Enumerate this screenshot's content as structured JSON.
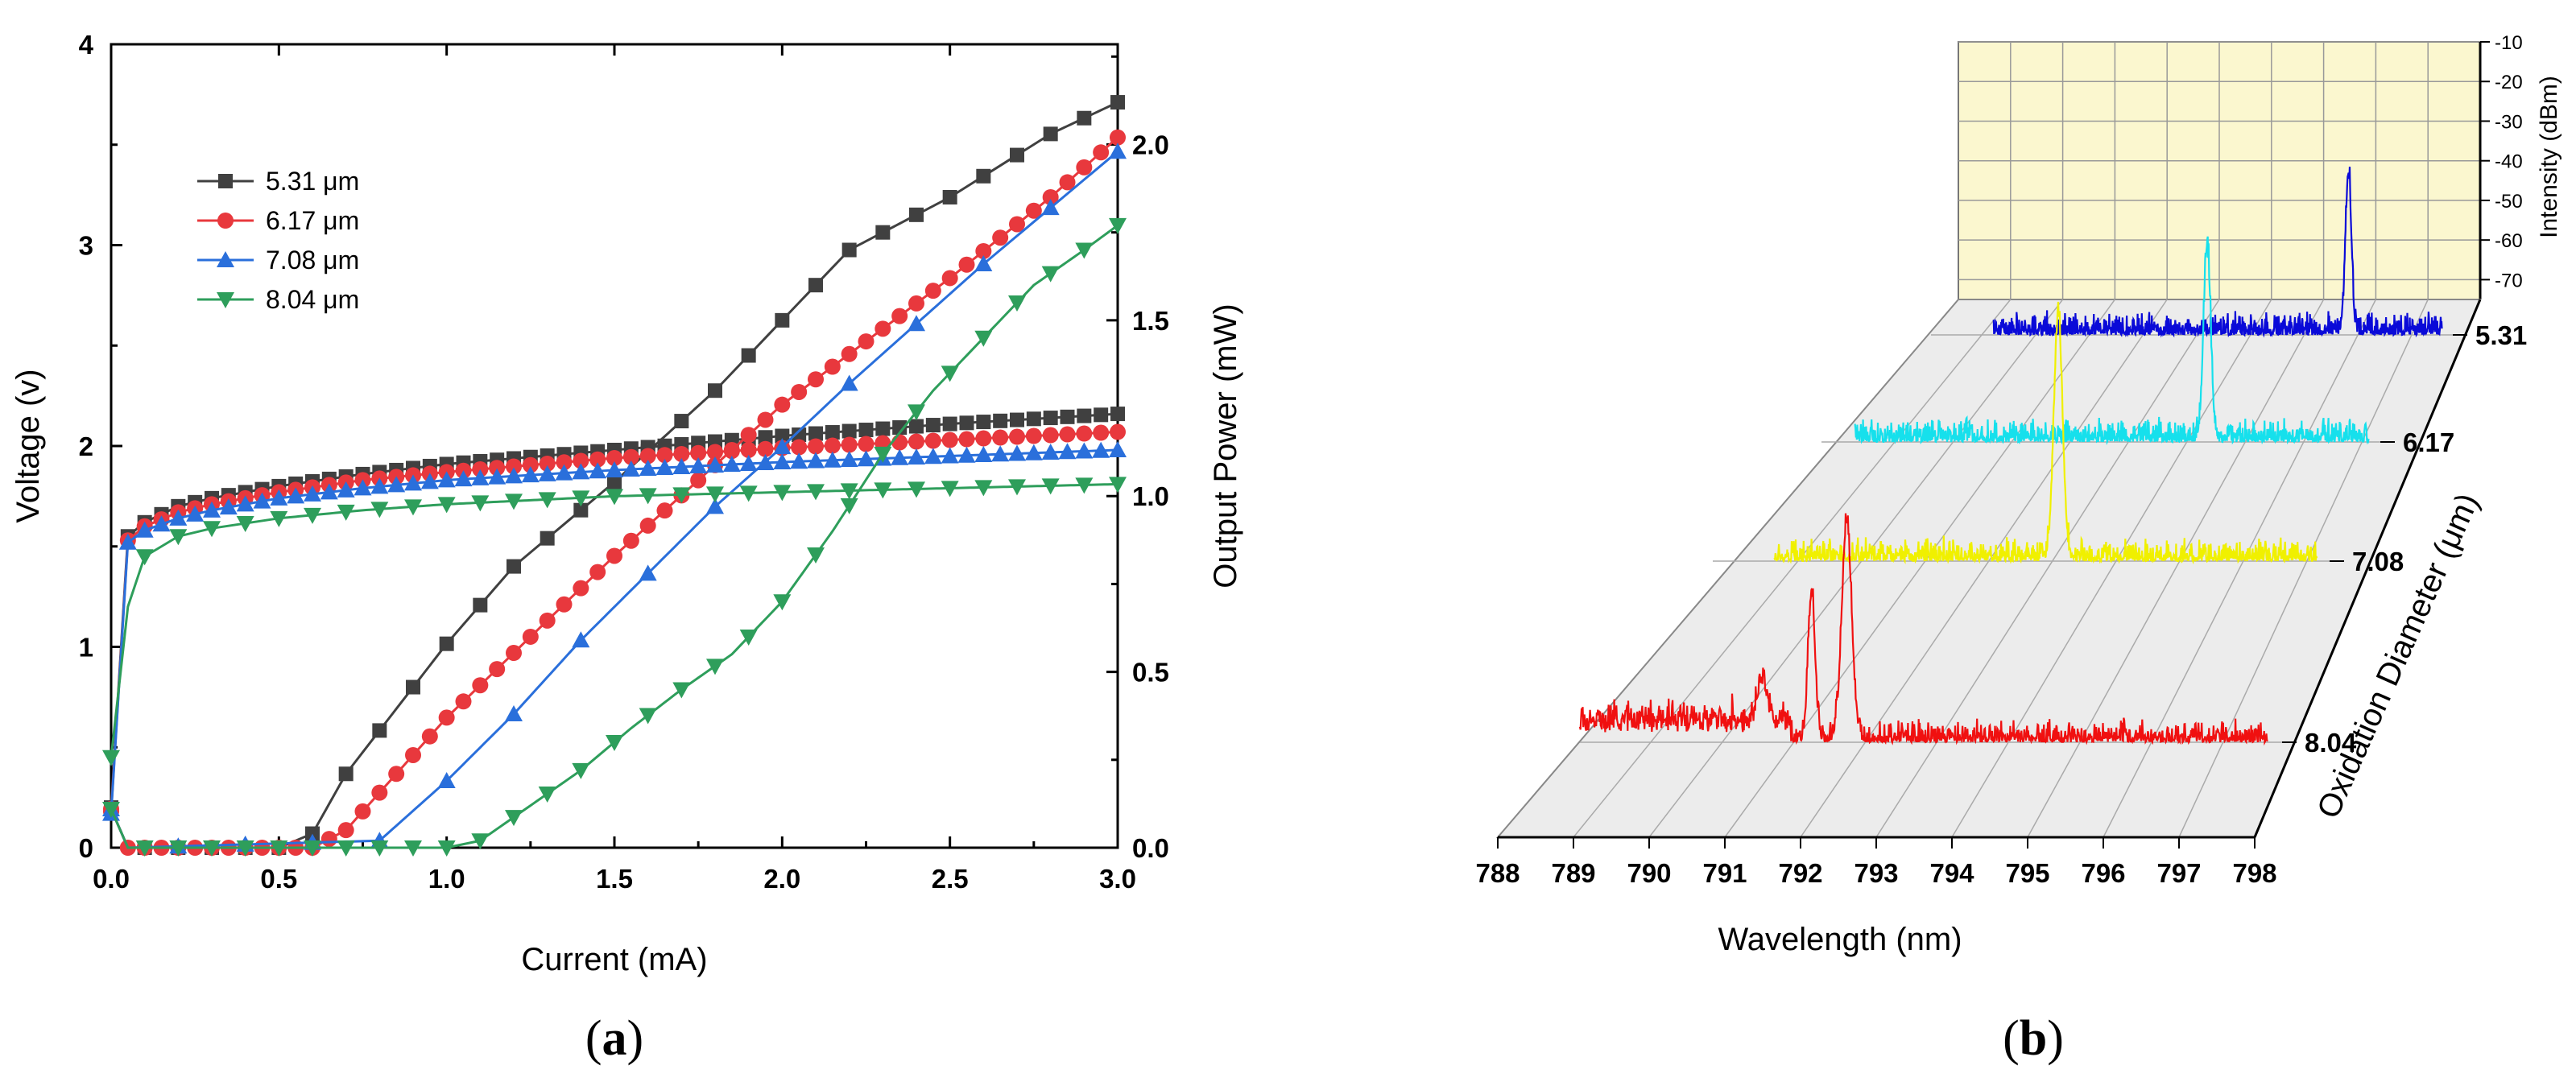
{
  "chart_data": [
    {
      "type": "line",
      "panel_label": "a",
      "xlabel": "Current (mA)",
      "ylabel": "Voltage (v)",
      "y2label": "Output Power (mW)",
      "xlim": [
        0,
        3
      ],
      "ylim": [
        0,
        4
      ],
      "y2lim": [
        0,
        2.285
      ],
      "x_ticks": [
        "0.0",
        "0.5",
        "1.0",
        "1.5",
        "2.0",
        "2.5",
        "3.0"
      ],
      "y_ticks": [
        "0",
        "1",
        "2",
        "3",
        "4"
      ],
      "y2_ticks": [
        "0.0",
        "0.5",
        "1.0",
        "1.5",
        "2.0"
      ],
      "legend_position": "top-left",
      "series": [
        {
          "name": "5.31 μm",
          "color": "#404040",
          "marker": "square",
          "voltage": {
            "x": [
              0,
              0.05,
              0.1,
              0.2,
              0.3,
              0.5,
              0.75,
              1.0,
              1.5,
              2.0,
              2.5,
              3.0
            ],
            "y": [
              0.2,
              1.55,
              1.62,
              1.7,
              1.74,
              1.8,
              1.86,
              1.91,
              1.98,
              2.05,
              2.11,
              2.16
            ]
          },
          "power": {
            "x": [
              0,
              0.05,
              0.5,
              0.6,
              0.7,
              1.0,
              1.2,
              1.5,
              1.8,
              2.0,
              2.2,
              2.5,
              2.8,
              3.0
            ],
            "y": [
              0.11,
              0.0,
              0.0,
              0.04,
              0.21,
              0.58,
              0.8,
              1.04,
              1.3,
              1.5,
              1.7,
              1.85,
              2.03,
              2.12
            ]
          }
        },
        {
          "name": "6.17 μm",
          "color": "#e8383d",
          "marker": "circle",
          "voltage": {
            "x": [
              0,
              0.05,
              0.1,
              0.2,
              0.3,
              0.5,
              0.75,
              1.0,
              1.5,
              2.0,
              2.5,
              3.0
            ],
            "y": [
              0.18,
              1.53,
              1.6,
              1.67,
              1.71,
              1.77,
              1.83,
              1.87,
              1.94,
              1.99,
              2.03,
              2.07
            ]
          },
          "power": {
            "x": [
              0,
              0.05,
              0.6,
              0.7,
              1.0,
              1.5,
              2.0,
              2.5,
              2.8,
              3.0
            ],
            "y": [
              0.11,
              0.0,
              0.0,
              0.05,
              0.37,
              0.83,
              1.26,
              1.62,
              1.85,
              2.02
            ]
          }
        },
        {
          "name": "7.08 μm",
          "color": "#2a6fdb",
          "marker": "triangle-up",
          "voltage": {
            "x": [
              0,
              0.05,
              0.1,
              0.2,
              0.3,
              0.5,
              0.75,
              1.0,
              1.5,
              2.0,
              2.5,
              3.0
            ],
            "y": [
              0.17,
              1.52,
              1.58,
              1.64,
              1.68,
              1.74,
              1.79,
              1.83,
              1.88,
              1.92,
              1.95,
              1.98
            ]
          },
          "power": {
            "x": [
              0,
              0.05,
              0.8,
              1.0,
              1.2,
              1.4,
              1.6,
              1.8,
              2.0,
              2.2,
              2.4,
              2.6,
              2.8,
              3.0
            ],
            "y": [
              0.11,
              0.0,
              0.02,
              0.19,
              0.38,
              0.59,
              0.78,
              0.97,
              1.14,
              1.32,
              1.49,
              1.66,
              1.82,
              1.98
            ]
          }
        },
        {
          "name": "8.04 μm",
          "color": "#2e9e5b",
          "marker": "triangle-down",
          "voltage": {
            "x": [
              0,
              0.05,
              0.1,
              0.2,
              0.3,
              0.5,
              0.75,
              1.0,
              1.5,
              2.0,
              2.5,
              3.0
            ],
            "y": [
              0.45,
              1.2,
              1.45,
              1.55,
              1.59,
              1.64,
              1.68,
              1.71,
              1.75,
              1.77,
              1.79,
              1.81
            ]
          },
          "power": {
            "x": [
              0,
              0.05,
              1.0,
              1.1,
              1.25,
              1.4,
              1.55,
              1.7,
              1.85,
              2.0,
              2.15,
              2.3,
              2.45,
              2.6,
              2.75,
              2.9,
              3.0
            ],
            "y": [
              0.11,
              0.0,
              0.0,
              0.02,
              0.12,
              0.22,
              0.34,
              0.45,
              0.55,
              0.7,
              0.9,
              1.12,
              1.3,
              1.45,
              1.6,
              1.7,
              1.77
            ]
          }
        }
      ]
    },
    {
      "type": "area",
      "subtype": "3d-waterfall-spectra",
      "panel_label": "b",
      "xlabel": "Wavelength (nm)",
      "ylabel": "Oxidation Diameter (μm)",
      "zlabel": "Intensity (dBm)",
      "xlim": [
        788,
        798
      ],
      "zlim": [
        -75,
        -10
      ],
      "x_ticks": [
        "788",
        "789",
        "790",
        "791",
        "792",
        "793",
        "794",
        "795",
        "796",
        "797",
        "798"
      ],
      "z_ticks": [
        "-10",
        "-20",
        "-30",
        "-40",
        "-50",
        "-60",
        "-70"
      ],
      "series": [
        {
          "name": "5.31",
          "color": "#0a0ad8",
          "peaks_nm": [
            796.0
          ],
          "noise_floor_dbm": -72,
          "peak_dbm": -38
        },
        {
          "name": "6.17",
          "color": "#16e0ec",
          "peaks_nm": [
            794.9
          ],
          "noise_floor_dbm": -72,
          "peak_dbm": -32
        },
        {
          "name": "7.08",
          "color": "#f0f000",
          "peaks_nm": [
            793.6
          ],
          "noise_floor_dbm": -72,
          "peak_dbm": -32
        },
        {
          "name": "8.04",
          "color": "#f01010",
          "peaks_nm": [
            790.6,
            791.3,
            791.8
          ],
          "noise_floor_dbm": -68,
          "peak_dbm": -35
        }
      ]
    }
  ]
}
